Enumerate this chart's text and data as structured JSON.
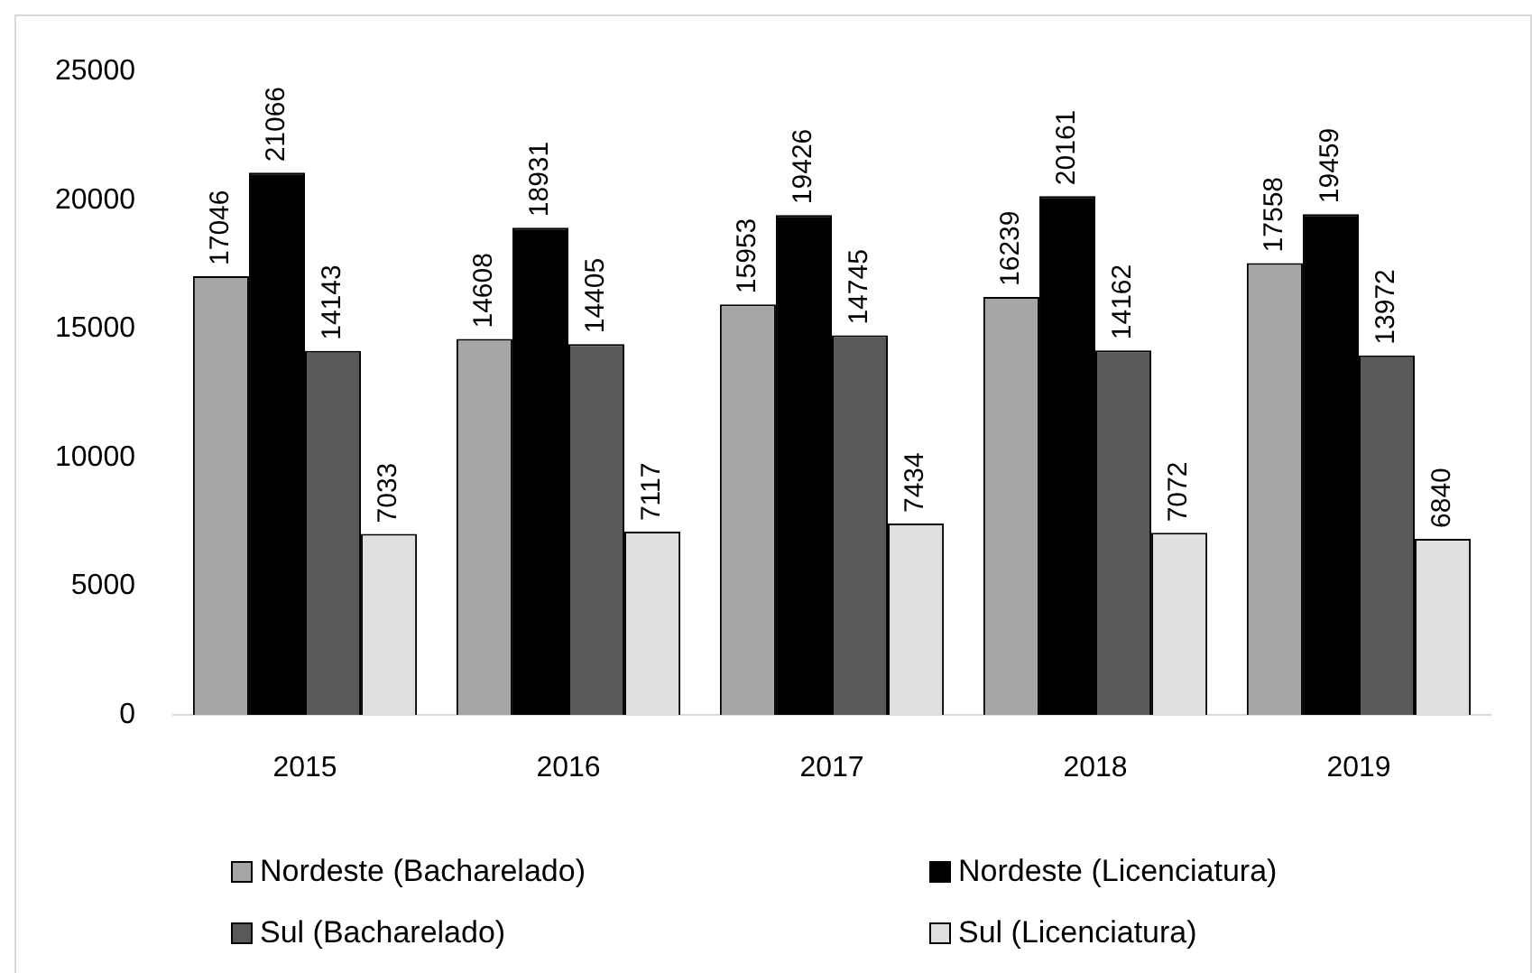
{
  "chart_data": {
    "type": "bar",
    "categories": [
      "2015",
      "2016",
      "2017",
      "2018",
      "2019"
    ],
    "series": [
      {
        "name": "Nordeste (Bacharelado)",
        "color": "#a6a6a6",
        "values": [
          17046,
          14608,
          15953,
          16239,
          17558
        ]
      },
      {
        "name": "Nordeste (Licenciatura)",
        "color": "#000000",
        "values": [
          21066,
          18931,
          19426,
          20161,
          19459
        ]
      },
      {
        "name": "Sul (Bacharelado)",
        "color": "#595959",
        "values": [
          14143,
          14405,
          14745,
          14162,
          13972
        ]
      },
      {
        "name": "Sul (Licenciatura)",
        "color": "#e0e0e0",
        "values": [
          7033,
          7117,
          7434,
          7072,
          6840
        ]
      }
    ],
    "ylim": [
      0,
      25000
    ],
    "yticks": [
      0,
      5000,
      10000,
      15000,
      20000,
      25000
    ],
    "grid": false,
    "legend": "bottom",
    "data_labels": true
  }
}
